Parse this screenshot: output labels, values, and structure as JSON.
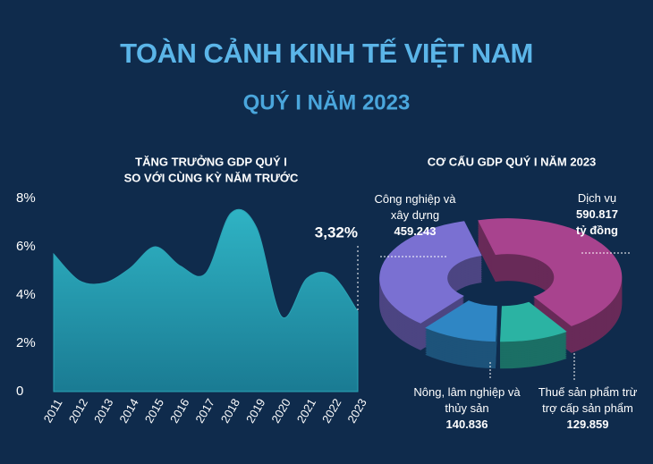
{
  "title": "TOÀN CẢNH KINH TẾ VIỆT NAM",
  "subtitle": "QUÝ I NĂM 2023",
  "chart_data": [
    {
      "type": "area",
      "title": "TĂNG TRƯỞNG GDP QUÝ I",
      "subtitle": "SO VỚI CÙNG KỲ NĂM TRƯỚC",
      "categories": [
        "2011",
        "2012",
        "2013",
        "2014",
        "2015",
        "2016",
        "2017",
        "2018",
        "2019",
        "2020",
        "2021",
        "2022",
        "2023"
      ],
      "values": [
        5.7,
        4.6,
        4.5,
        5.1,
        6.0,
        5.2,
        4.9,
        7.4,
        6.8,
        3.1,
        4.7,
        4.8,
        3.32
      ],
      "value_labels": [
        null,
        null,
        null,
        null,
        null,
        null,
        null,
        null,
        null,
        null,
        null,
        null,
        "3,32%"
      ],
      "color": "#2aa4b6",
      "ylim": [
        0,
        8
      ],
      "yticks": [
        0,
        {
          "value": 2,
          "label": "2%"
        },
        {
          "value": 4,
          "label": "4%"
        },
        {
          "value": 6,
          "label": "6%"
        },
        {
          "value": 8,
          "label": "8%"
        }
      ]
    },
    {
      "type": "pie",
      "title": "CƠ CẤU GDP QUÝ I NĂM 2023",
      "categories": [
        "Dịch vụ",
        "Thuế sản phẩm trừ trợ cấp sản phẩm",
        "Nông, lâm nghiệp và thủy sản",
        "Công nghiệp và xây dựng"
      ],
      "values": [
        590817,
        129859,
        140836,
        459243
      ],
      "value_labels": [
        "590.817",
        "129.859",
        "140.836",
        "459.243"
      ],
      "unit": "tỷ đồng",
      "colors": [
        "#a8438e",
        "#2bb3a3",
        "#2f86c4",
        "#7a70d2"
      ]
    }
  ]
}
